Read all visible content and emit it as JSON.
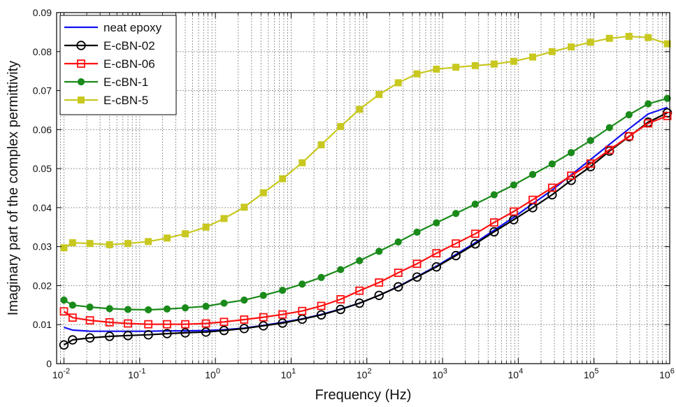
{
  "chart_data": {
    "type": "line",
    "title": "",
    "xlabel": "Frequency (Hz)",
    "ylabel": "Imaginary part of the complex permittivity",
    "x_scale": "log",
    "xlim": [
      0.008,
      1000000
    ],
    "ylim": [
      0,
      0.09
    ],
    "grid": true,
    "legend_position": "top-left",
    "x_ticks": [
      {
        "value": 0.01,
        "base": "10",
        "exp": "-2"
      },
      {
        "value": 0.1,
        "base": "10",
        "exp": "-1"
      },
      {
        "value": 1,
        "base": "10",
        "exp": "0"
      },
      {
        "value": 10,
        "base": "10",
        "exp": "1"
      },
      {
        "value": 100,
        "base": "10",
        "exp": "2"
      },
      {
        "value": 1000,
        "base": "10",
        "exp": "3"
      },
      {
        "value": 10000,
        "base": "10",
        "exp": "4"
      },
      {
        "value": 100000,
        "base": "10",
        "exp": "5"
      },
      {
        "value": 1000000,
        "base": "10",
        "exp": "6"
      }
    ],
    "y_ticks": [
      {
        "value": 0,
        "label": "0"
      },
      {
        "value": 0.01,
        "label": "0.01"
      },
      {
        "value": 0.02,
        "label": "0.02"
      },
      {
        "value": 0.03,
        "label": "0.03"
      },
      {
        "value": 0.04,
        "label": "0.04"
      },
      {
        "value": 0.05,
        "label": "0.05"
      },
      {
        "value": 0.06,
        "label": "0.06"
      },
      {
        "value": 0.07,
        "label": "0.07"
      },
      {
        "value": 0.08,
        "label": "0.08"
      },
      {
        "value": 0.09,
        "label": "0.09"
      }
    ],
    "series": [
      {
        "name": "neat epoxy",
        "color": "#1010f0",
        "marker": "none",
        "x": [
          0.01,
          0.013,
          0.022,
          0.04,
          0.07,
          0.13,
          0.23,
          0.4,
          0.75,
          1.3,
          2.4,
          4.3,
          7.7,
          14,
          25,
          45,
          80,
          145,
          260,
          460,
          830,
          1500,
          2700,
          4800,
          8700,
          15500,
          28000,
          50000,
          90000,
          160000,
          290000,
          520000,
          930000
        ],
        "y": [
          0.0093,
          0.0086,
          0.0083,
          0.0083,
          0.0083,
          0.0083,
          0.0084,
          0.0084,
          0.0085,
          0.0087,
          0.0091,
          0.0098,
          0.0106,
          0.0115,
          0.0126,
          0.014,
          0.0155,
          0.0175,
          0.0198,
          0.0223,
          0.025,
          0.028,
          0.031,
          0.0342,
          0.0375,
          0.041,
          0.0445,
          0.0484,
          0.0523,
          0.0562,
          0.0602,
          0.064,
          0.0657
        ]
      },
      {
        "name": "E-cBN-02",
        "color": "#000000",
        "marker": "circle-open",
        "x": [
          0.01,
          0.013,
          0.022,
          0.04,
          0.07,
          0.13,
          0.23,
          0.4,
          0.75,
          1.3,
          2.4,
          4.3,
          7.7,
          14,
          25,
          45,
          80,
          145,
          260,
          460,
          830,
          1500,
          2700,
          4800,
          8700,
          15500,
          28000,
          50000,
          90000,
          160000,
          290000,
          520000,
          930000
        ],
        "y": [
          0.0048,
          0.0061,
          0.0066,
          0.007,
          0.0072,
          0.0074,
          0.0077,
          0.0079,
          0.0081,
          0.0085,
          0.009,
          0.0097,
          0.0104,
          0.0114,
          0.0125,
          0.0139,
          0.0155,
          0.0175,
          0.0197,
          0.0222,
          0.0248,
          0.0277,
          0.0307,
          0.0338,
          0.0369,
          0.04,
          0.0433,
          0.047,
          0.0505,
          0.0545,
          0.0582,
          0.0619,
          0.0643
        ]
      },
      {
        "name": "E-cBN-06",
        "color": "#ff1010",
        "marker": "square-open",
        "x": [
          0.01,
          0.013,
          0.022,
          0.04,
          0.07,
          0.13,
          0.23,
          0.4,
          0.75,
          1.3,
          2.4,
          4.3,
          7.7,
          14,
          25,
          45,
          80,
          145,
          260,
          460,
          830,
          1500,
          2700,
          4800,
          8700,
          15500,
          28000,
          50000,
          90000,
          160000,
          290000,
          520000,
          930000
        ],
        "y": [
          0.0134,
          0.0118,
          0.0111,
          0.0106,
          0.0103,
          0.0101,
          0.0101,
          0.0101,
          0.0103,
          0.0107,
          0.0113,
          0.0119,
          0.0126,
          0.0135,
          0.0148,
          0.0165,
          0.0187,
          0.0208,
          0.0233,
          0.0256,
          0.0283,
          0.0308,
          0.0333,
          0.0362,
          0.039,
          0.042,
          0.0451,
          0.0482,
          0.0513,
          0.0548,
          0.0583,
          0.0616,
          0.0635
        ]
      },
      {
        "name": "E-cBN-1",
        "color": "#1a8a1a",
        "marker": "circle-filled",
        "x": [
          0.01,
          0.013,
          0.022,
          0.04,
          0.07,
          0.13,
          0.23,
          0.4,
          0.75,
          1.3,
          2.4,
          4.3,
          7.7,
          14,
          25,
          45,
          80,
          145,
          260,
          460,
          830,
          1500,
          2700,
          4800,
          8700,
          15500,
          28000,
          50000,
          90000,
          160000,
          290000,
          520000,
          930000
        ],
        "y": [
          0.0163,
          0.015,
          0.0145,
          0.0141,
          0.0139,
          0.0138,
          0.014,
          0.0143,
          0.0147,
          0.0155,
          0.0163,
          0.0175,
          0.0188,
          0.0204,
          0.0221,
          0.0241,
          0.0264,
          0.0288,
          0.0312,
          0.0337,
          0.0361,
          0.0385,
          0.0409,
          0.0433,
          0.0458,
          0.0485,
          0.0512,
          0.0541,
          0.0572,
          0.0605,
          0.0638,
          0.0666,
          0.068
        ]
      },
      {
        "name": "E-cBN-5",
        "color": "#c8c820",
        "marker": "square-filled",
        "x": [
          0.01,
          0.013,
          0.022,
          0.04,
          0.07,
          0.13,
          0.23,
          0.4,
          0.75,
          1.3,
          2.4,
          4.3,
          7.7,
          14,
          25,
          45,
          80,
          145,
          260,
          460,
          830,
          1500,
          2700,
          4800,
          8700,
          15500,
          28000,
          50000,
          90000,
          160000,
          290000,
          520000,
          930000
        ],
        "y": [
          0.0297,
          0.031,
          0.0308,
          0.0305,
          0.0308,
          0.0313,
          0.0322,
          0.0333,
          0.035,
          0.0372,
          0.0401,
          0.0438,
          0.0474,
          0.0515,
          0.0561,
          0.0608,
          0.0652,
          0.069,
          0.072,
          0.0743,
          0.0755,
          0.076,
          0.0764,
          0.0768,
          0.0775,
          0.0786,
          0.08,
          0.0812,
          0.0824,
          0.0834,
          0.0839,
          0.0836,
          0.082
        ]
      }
    ]
  }
}
